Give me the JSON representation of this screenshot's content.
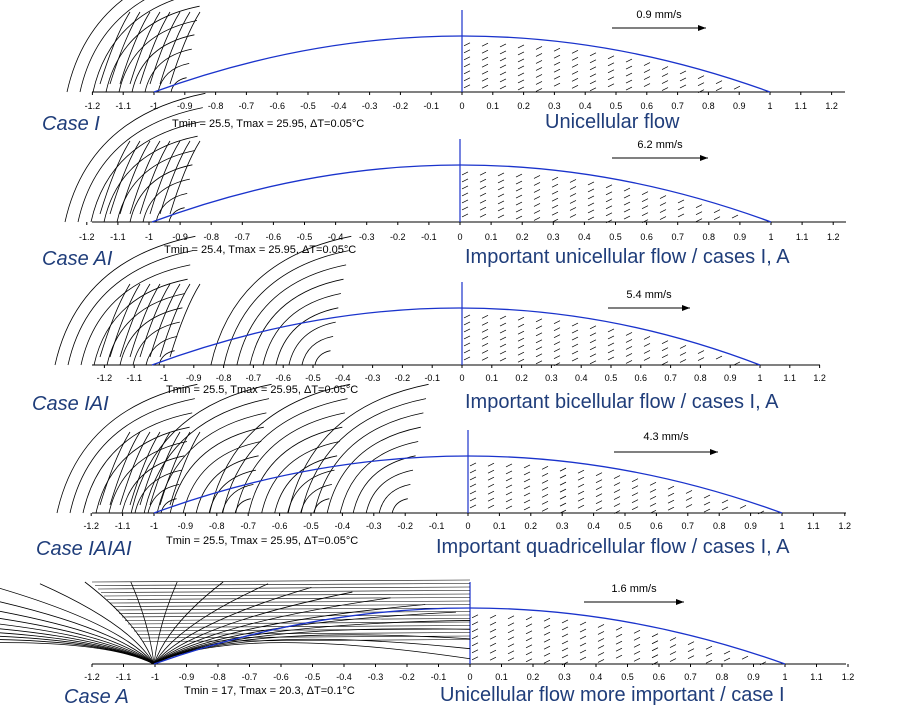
{
  "ticks": [
    "-1.2",
    "-1.1",
    "-1",
    "-0.9",
    "-0.8",
    "-0.7",
    "-0.6",
    "-0.5",
    "-0.4",
    "-0.3",
    "-0.2",
    "-0.1",
    "0",
    "0.1",
    "0.2",
    "0.3",
    "0.4",
    "0.5",
    "0.6",
    "0.7",
    "0.8",
    "0.9",
    "1",
    "1.1",
    "1.2"
  ],
  "panels": [
    {
      "case_label": "Case I",
      "temp_label": "Tmin = 25.5, Tmax = 25.95,  ΔT=0.05°C",
      "flow_label": "Unicellular flow",
      "velocity_label": "0.9 mm/s",
      "cells": 1
    },
    {
      "case_label": "Case AI",
      "temp_label": "Tmin = 25.4, Tmax = 25.95,  ΔT=0.05°C",
      "flow_label": "Important unicellular flow / cases I, A",
      "velocity_label": "6.2 mm/s",
      "cells": 1
    },
    {
      "case_label": "Case IAI",
      "temp_label": "Tmin = 25.5, Tmax = 25.95,  ΔT=0.05°C",
      "flow_label": "Important bicellular flow / cases I, A",
      "velocity_label": "5.4 mm/s",
      "cells": 2
    },
    {
      "case_label": "Case IAIAI",
      "temp_label": "Tmin = 25.5, Tmax = 25.95,  ΔT=0.05°C",
      "flow_label": "Important quadricellular flow / cases I, A",
      "velocity_label": "4.3 mm/s",
      "cells": 4
    },
    {
      "case_label": "Case A",
      "temp_label": "Tmin = 17, Tmax = 20.3,  ΔT=0.1°C",
      "flow_label": "Unicellular flow more important / case I",
      "velocity_label": "1.6 mm/s",
      "cells": 1
    }
  ],
  "colors": {
    "outline": "#1a33cc",
    "text_blue": "#1f3d7a",
    "lines": "#000000"
  }
}
